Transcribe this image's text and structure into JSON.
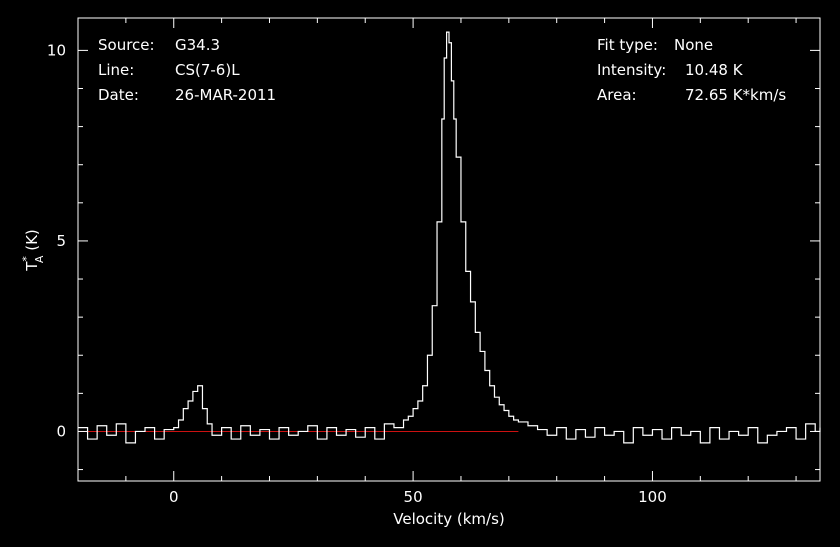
{
  "header": {
    "left": [
      {
        "key": "Source:",
        "value": "G34.3"
      },
      {
        "key": "Line:",
        "value": "CS(7-6)L"
      },
      {
        "key": "Date:",
        "value": "26-MAR-2011"
      }
    ],
    "right": [
      {
        "key": "Fit type:",
        "value": "None"
      },
      {
        "key": "Intensity:",
        "value": "10.48 K"
      },
      {
        "key": "Area:",
        "value": "72.65 K*km/s"
      }
    ]
  },
  "colors": {
    "background": "#000000",
    "spectrum": "#ffffff",
    "baseline": "#cc1111",
    "axes": "#ffffff"
  },
  "chart_data": {
    "type": "line",
    "title": "",
    "xlabel": "Velocity (km/s)",
    "ylabel_main": "T",
    "ylabel_sup": "*",
    "ylabel_sub": "A",
    "ylabel_unit": " (K)",
    "xlim": [
      -20,
      135
    ],
    "ylim": [
      -1.3,
      10.85
    ],
    "xticks": [
      0,
      50,
      100
    ],
    "xtick_labels": [
      "0",
      "50",
      "100"
    ],
    "yticks": [
      0,
      5,
      10
    ],
    "ytick_labels": [
      "0",
      "5",
      "10"
    ],
    "baseline": {
      "y": 0,
      "x": [
        -20,
        72
      ]
    },
    "series": [
      {
        "x": [
          -20,
          -18,
          -16,
          -14,
          -12,
          -10,
          -8,
          -6,
          -4,
          -2,
          0,
          1,
          2,
          3,
          4,
          5,
          6,
          7,
          8,
          10,
          12,
          14,
          16,
          18,
          20,
          22,
          24,
          26,
          28,
          30,
          32,
          34,
          36,
          38,
          40,
          42,
          44,
          46,
          48,
          49,
          50,
          51,
          52,
          53,
          54,
          55,
          56,
          56.5,
          57,
          57.5,
          58,
          58.5,
          59,
          60,
          61,
          62,
          63,
          64,
          65,
          66,
          67,
          68,
          69,
          70,
          71,
          72,
          74,
          76,
          78,
          80,
          82,
          84,
          86,
          88,
          90,
          92,
          94,
          96,
          98,
          100,
          102,
          104,
          106,
          108,
          110,
          112,
          114,
          116,
          118,
          120,
          122,
          124,
          126,
          128,
          130,
          132,
          134,
          135
        ],
        "y": [
          0.1,
          -0.2,
          0.15,
          -0.1,
          0.2,
          -0.3,
          0.0,
          0.1,
          -0.2,
          0.05,
          0.1,
          0.3,
          0.6,
          0.8,
          1.05,
          1.2,
          0.6,
          0.2,
          -0.1,
          0.1,
          -0.2,
          0.15,
          -0.1,
          0.05,
          -0.2,
          0.1,
          -0.1,
          0.0,
          0.15,
          -0.2,
          0.1,
          -0.1,
          0.05,
          -0.15,
          0.1,
          -0.2,
          0.2,
          0.1,
          0.3,
          0.4,
          0.6,
          0.8,
          1.2,
          2.0,
          3.3,
          5.5,
          8.2,
          9.8,
          10.48,
          10.2,
          9.2,
          8.2,
          7.2,
          5.5,
          4.2,
          3.4,
          2.6,
          2.1,
          1.6,
          1.2,
          0.9,
          0.7,
          0.55,
          0.4,
          0.3,
          0.25,
          0.15,
          0.05,
          -0.1,
          0.1,
          -0.2,
          0.05,
          -0.15,
          0.1,
          -0.1,
          0.0,
          -0.3,
          0.1,
          -0.1,
          0.05,
          -0.2,
          0.1,
          -0.1,
          0.0,
          -0.3,
          0.1,
          -0.2,
          0.0,
          -0.1,
          0.1,
          -0.3,
          -0.1,
          0.0,
          0.1,
          -0.2,
          0.2,
          0.0,
          0.1
        ]
      }
    ]
  }
}
